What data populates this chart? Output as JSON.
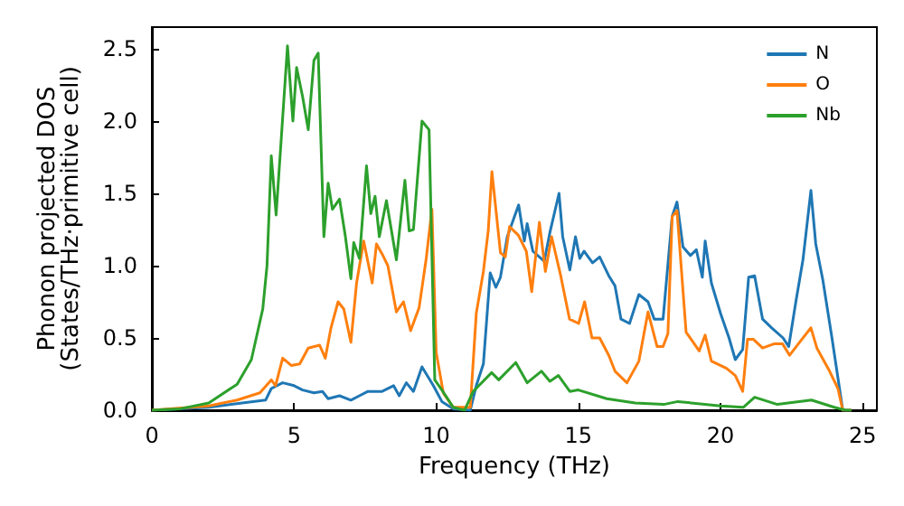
{
  "chart_data": {
    "type": "line",
    "xlabel": "Frequency (THz)",
    "ylabel": "Phonon projected DOS\n(States/THz·primitive cell)",
    "xlim": [
      0,
      25.5
    ],
    "ylim": [
      0,
      2.65
    ],
    "xticks": [
      0,
      5,
      10,
      15,
      20,
      25
    ],
    "yticks": [
      {
        "value": 0,
        "label": "0.0"
      },
      {
        "value": 0.5,
        "label": "0.5"
      },
      {
        "value": 1,
        "label": "1.0"
      },
      {
        "value": 1.5,
        "label": "1.5"
      },
      {
        "value": 2,
        "label": "2.0"
      },
      {
        "value": 2.5,
        "label": "2.5"
      }
    ],
    "legend": "top right",
    "grid": false,
    "marker": "none",
    "series": [
      {
        "name": "N",
        "color": "#1f77b4",
        "x": [
          0,
          2,
          4,
          4.2,
          4.6,
          5.0,
          5.3,
          5.7,
          6.0,
          6.2,
          6.6,
          7.0,
          7.3,
          7.6,
          8.1,
          8.5,
          8.7,
          8.95,
          9.2,
          9.5,
          9.9,
          10.2,
          10.6,
          11.2,
          11.41,
          11.66,
          11.9,
          12.1,
          12.26,
          12.5,
          12.9,
          13.1,
          13.2,
          13.4,
          13.8,
          14.0,
          14.32,
          14.45,
          14.7,
          14.9,
          15.05,
          15.2,
          15.5,
          15.75,
          16.07,
          16.29,
          16.5,
          16.8,
          17.13,
          17.45,
          17.67,
          17.98,
          18.3,
          18.47,
          18.68,
          18.94,
          19.15,
          19.36,
          19.46,
          19.68,
          20.0,
          20.3,
          20.52,
          20.78,
          20.99,
          21.2,
          21.48,
          21.8,
          22.2,
          22.4,
          22.65,
          22.9,
          23.18,
          23.35,
          23.6,
          23.92,
          24.3,
          24.6
        ],
        "values": [
          0,
          0.02,
          0.07,
          0.15,
          0.19,
          0.17,
          0.14,
          0.12,
          0.13,
          0.08,
          0.1,
          0.07,
          0.1,
          0.13,
          0.13,
          0.17,
          0.1,
          0.19,
          0.13,
          0.3,
          0.17,
          0.06,
          0.01,
          0,
          0.17,
          0.32,
          0.95,
          0.85,
          0.92,
          1.2,
          1.42,
          1.17,
          1.29,
          1.1,
          1.03,
          1.23,
          1.5,
          1.2,
          0.97,
          1.2,
          1.05,
          1.1,
          1.02,
          1.06,
          0.93,
          0.86,
          0.63,
          0.6,
          0.8,
          0.75,
          0.63,
          0.63,
          1.34,
          1.44,
          1.13,
          1.07,
          1.11,
          0.92,
          1.17,
          0.88,
          0.67,
          0.5,
          0.35,
          0.42,
          0.92,
          0.93,
          0.63,
          0.57,
          0.5,
          0.44,
          0.75,
          1.04,
          1.52,
          1.15,
          0.9,
          0.5,
          0,
          0
        ]
      },
      {
        "name": "O",
        "color": "#ff7f0e",
        "x": [
          0,
          2,
          3,
          3.8,
          4.2,
          4.35,
          4.6,
          4.9,
          5.2,
          5.5,
          5.9,
          6.1,
          6.3,
          6.55,
          6.75,
          7.0,
          7.2,
          7.45,
          7.75,
          7.9,
          8.1,
          8.3,
          8.6,
          8.85,
          9.1,
          9.4,
          9.65,
          9.85,
          10.0,
          10.25,
          10.6,
          11.2,
          11.41,
          11.66,
          11.83,
          11.96,
          12.26,
          12.43,
          12.58,
          12.89,
          13.17,
          13.36,
          13.63,
          13.84,
          14.06,
          14.38,
          14.69,
          15.01,
          15.22,
          15.48,
          15.75,
          16.07,
          16.29,
          16.71,
          17.13,
          17.45,
          17.77,
          17.98,
          18.15,
          18.3,
          18.47,
          18.79,
          19.25,
          19.46,
          19.68,
          20.21,
          20.52,
          20.78,
          20.95,
          21.16,
          21.48,
          21.9,
          22.18,
          22.43,
          22.86,
          23.18,
          23.39,
          23.81,
          24.13,
          24.3,
          24.6
        ],
        "values": [
          0,
          0.03,
          0.07,
          0.12,
          0.21,
          0.17,
          0.36,
          0.31,
          0.32,
          0.43,
          0.45,
          0.36,
          0.57,
          0.75,
          0.7,
          0.47,
          0.88,
          1.17,
          0.88,
          1.15,
          1.08,
          1.0,
          0.68,
          0.75,
          0.55,
          0.71,
          1.05,
          1.39,
          0.4,
          0.12,
          0.02,
          0.02,
          0.67,
          0.96,
          1.24,
          1.65,
          1.09,
          1.06,
          1.27,
          1.21,
          1.1,
          0.82,
          1.3,
          0.96,
          1.2,
          0.93,
          0.63,
          0.6,
          0.75,
          0.5,
          0.5,
          0.38,
          0.27,
          0.19,
          0.34,
          0.68,
          0.44,
          0.44,
          0.53,
          1.34,
          1.38,
          0.54,
          0.41,
          0.52,
          0.34,
          0.29,
          0.24,
          0.13,
          0.49,
          0.49,
          0.43,
          0.46,
          0.46,
          0.38,
          0.49,
          0.57,
          0.43,
          0.28,
          0.15,
          0,
          0
        ]
      },
      {
        "name": "Nb",
        "color": "#2ca02c",
        "x": [
          0,
          1,
          2,
          3,
          3.5,
          3.9,
          4.05,
          4.2,
          4.37,
          4.77,
          4.96,
          5.09,
          5.3,
          5.5,
          5.7,
          5.85,
          6.05,
          6.2,
          6.35,
          6.6,
          6.8,
          7.0,
          7.1,
          7.3,
          7.55,
          7.7,
          7.85,
          8.0,
          8.25,
          8.6,
          8.9,
          9.05,
          9.2,
          9.5,
          9.75,
          9.95,
          10.2,
          10.6,
          11.0,
          11.3,
          11.95,
          12.2,
          12.8,
          13.2,
          13.7,
          14.0,
          14.3,
          14.7,
          15.0,
          16.0,
          17.0,
          18.0,
          18.5,
          20.0,
          20.8,
          21.2,
          22.0,
          23.2,
          24.0,
          24.4,
          24.6
        ],
        "values": [
          0,
          0.01,
          0.05,
          0.18,
          0.35,
          0.7,
          1.0,
          1.76,
          1.35,
          2.52,
          2.0,
          2.37,
          2.17,
          1.94,
          2.42,
          2.47,
          1.2,
          1.57,
          1.39,
          1.46,
          1.21,
          0.91,
          1.16,
          1.05,
          1.69,
          1.36,
          1.48,
          1.2,
          1.45,
          1.04,
          1.59,
          1.24,
          1.25,
          2.0,
          1.94,
          0.21,
          0.14,
          0.02,
          0,
          0.13,
          0.26,
          0.21,
          0.33,
          0.19,
          0.27,
          0.2,
          0.24,
          0.13,
          0.14,
          0.08,
          0.05,
          0.04,
          0.06,
          0.03,
          0.02,
          0.09,
          0.04,
          0.07,
          0.02,
          0,
          0
        ]
      }
    ]
  }
}
